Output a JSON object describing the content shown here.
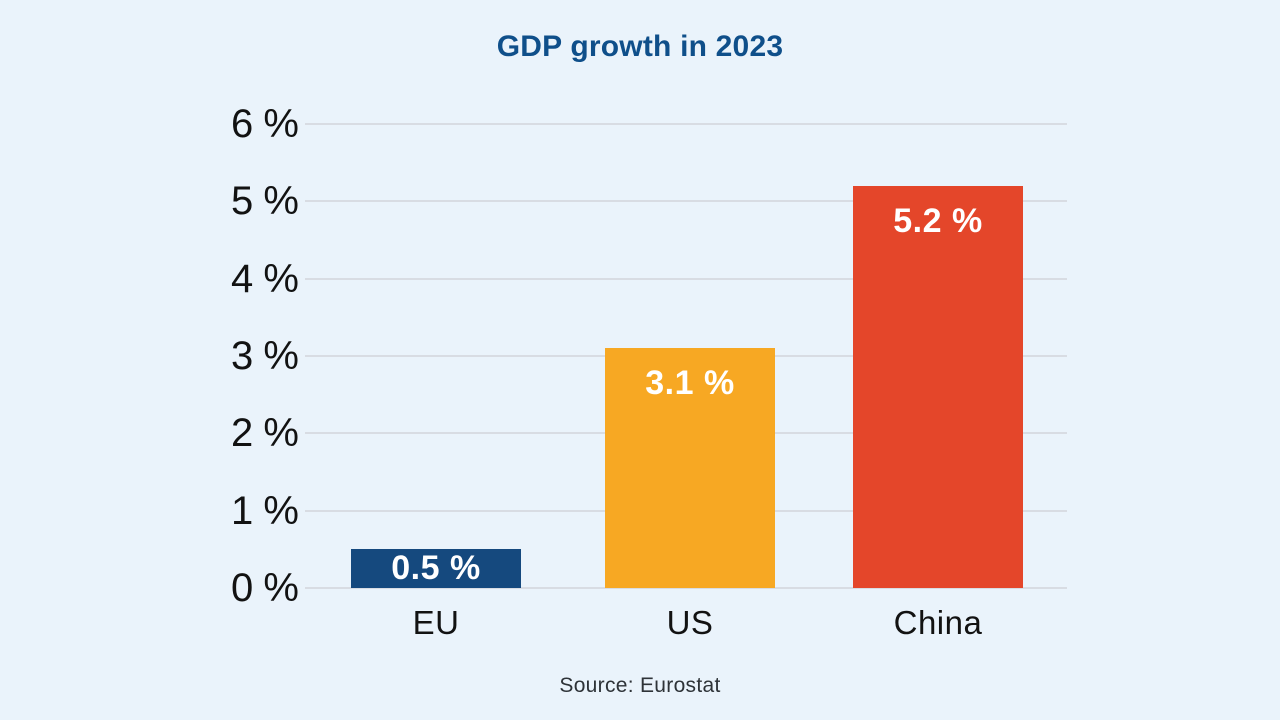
{
  "chart_data": {
    "type": "bar",
    "title": "GDP growth in 2023",
    "categories": [
      "EU",
      "US",
      "China"
    ],
    "values": [
      0.5,
      3.1,
      5.2
    ],
    "value_labels": [
      "0.5 %",
      "3.1 %",
      "5.2 %"
    ],
    "bar_colors": [
      "#15497e",
      "#f7a823",
      "#e4462a"
    ],
    "yticks": [
      "6 %",
      "5 %",
      "4 %",
      "3 %",
      "2 %",
      "1 %",
      "0 %"
    ],
    "ylim": [
      0,
      6
    ],
    "grid": true,
    "legend": "none",
    "source": "Source: Eurostat",
    "background_color": "#eaf3fb",
    "title_color": "#0f4f8a",
    "gridline_color": "#d8dce3"
  }
}
